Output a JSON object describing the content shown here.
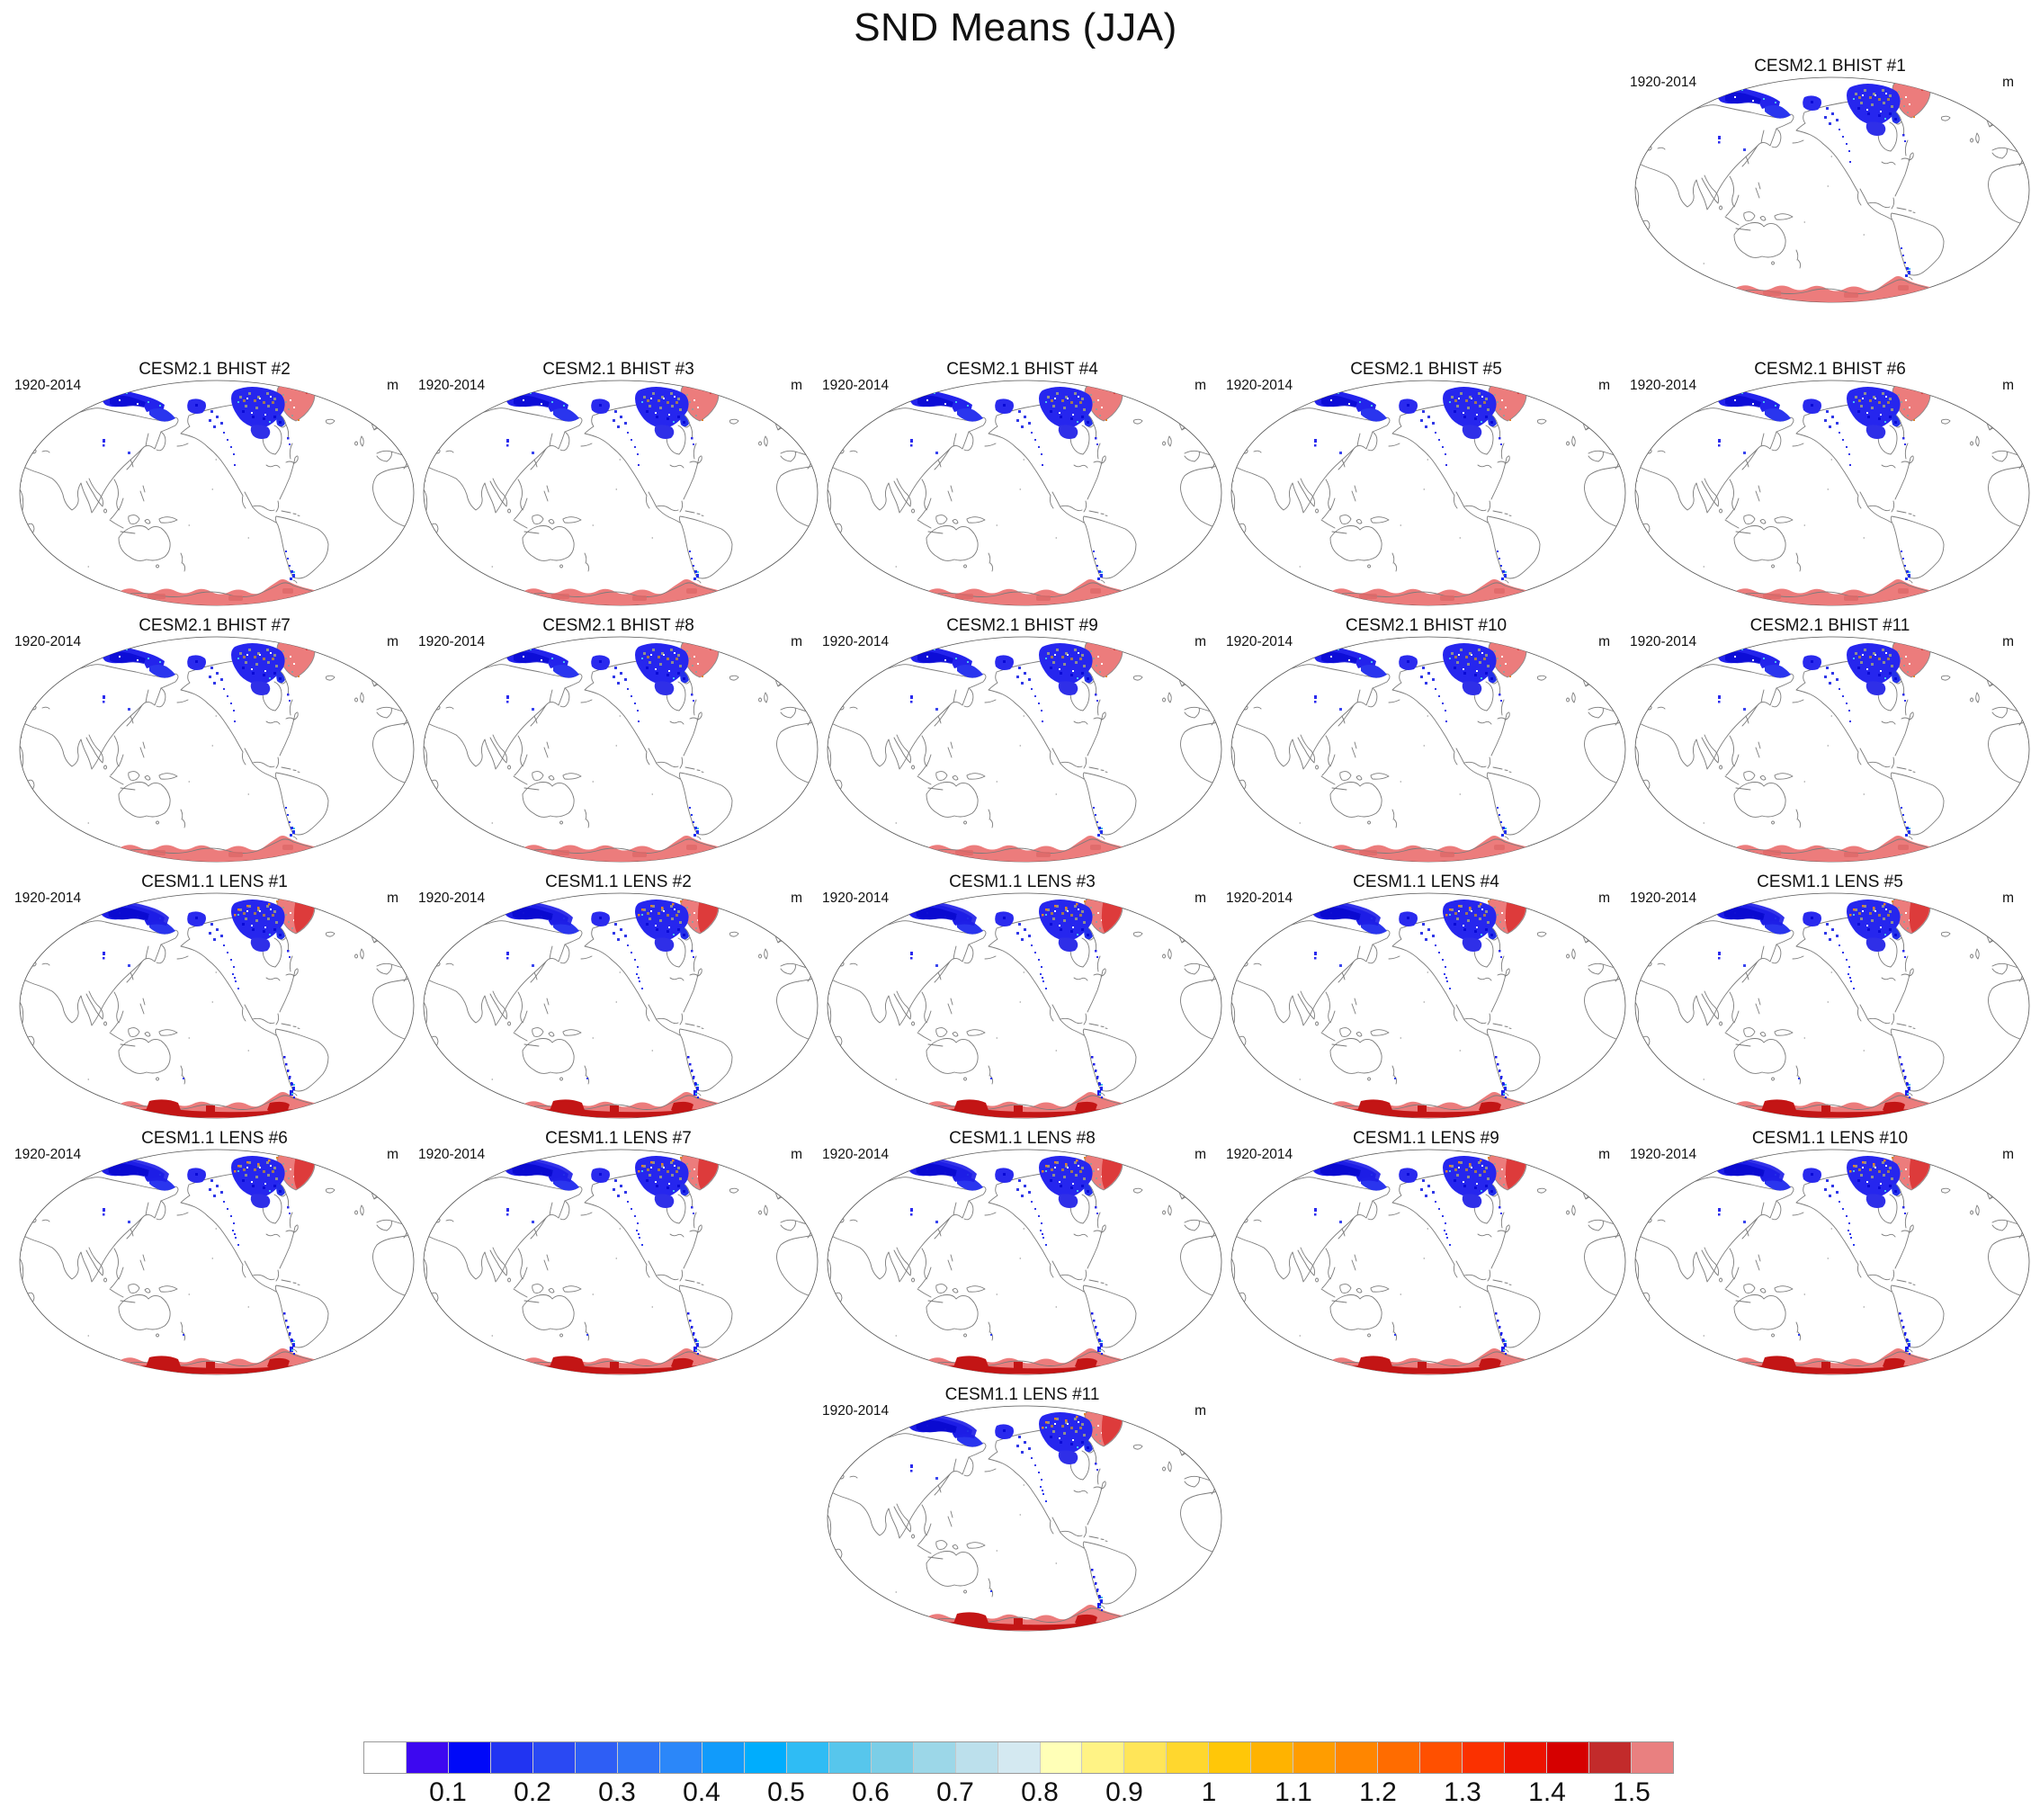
{
  "figure_title": "SND Means (JJA)",
  "panel_defaults": {
    "period": "1920-2014",
    "unit": "m"
  },
  "panels": [
    {
      "title": "CESM2.1 BHIST #1",
      "row": 1,
      "col": 5,
      "variant": "bhist"
    },
    {
      "title": "CESM2.1 BHIST #2",
      "row": 2,
      "col": 1,
      "variant": "bhist"
    },
    {
      "title": "CESM2.1 BHIST #3",
      "row": 2,
      "col": 2,
      "variant": "bhist"
    },
    {
      "title": "CESM2.1 BHIST #4",
      "row": 2,
      "col": 3,
      "variant": "bhist"
    },
    {
      "title": "CESM2.1 BHIST #5",
      "row": 2,
      "col": 4,
      "variant": "bhist"
    },
    {
      "title": "CESM2.1 BHIST #6",
      "row": 2,
      "col": 5,
      "variant": "bhist"
    },
    {
      "title": "CESM2.1 BHIST #7",
      "row": 3,
      "col": 1,
      "variant": "bhist"
    },
    {
      "title": "CESM2.1 BHIST #8",
      "row": 3,
      "col": 2,
      "variant": "bhist"
    },
    {
      "title": "CESM2.1 BHIST #9",
      "row": 3,
      "col": 3,
      "variant": "bhist"
    },
    {
      "title": "CESM2.1 BHIST #10",
      "row": 3,
      "col": 4,
      "variant": "bhist"
    },
    {
      "title": "CESM2.1 BHIST #11",
      "row": 3,
      "col": 5,
      "variant": "bhist"
    },
    {
      "title": "CESM1.1 LENS #1",
      "row": 4,
      "col": 1,
      "variant": "lens"
    },
    {
      "title": "CESM1.1 LENS #2",
      "row": 4,
      "col": 2,
      "variant": "lens"
    },
    {
      "title": "CESM1.1 LENS #3",
      "row": 4,
      "col": 3,
      "variant": "lens"
    },
    {
      "title": "CESM1.1 LENS #4",
      "row": 4,
      "col": 4,
      "variant": "lens"
    },
    {
      "title": "CESM1.1 LENS #5",
      "row": 4,
      "col": 5,
      "variant": "lens"
    },
    {
      "title": "CESM1.1 LENS #6",
      "row": 5,
      "col": 1,
      "variant": "lens"
    },
    {
      "title": "CESM1.1 LENS #7",
      "row": 5,
      "col": 2,
      "variant": "lens"
    },
    {
      "title": "CESM1.1 LENS #8",
      "row": 5,
      "col": 3,
      "variant": "lens"
    },
    {
      "title": "CESM1.1 LENS #9",
      "row": 5,
      "col": 4,
      "variant": "lens"
    },
    {
      "title": "CESM1.1 LENS #10",
      "row": 5,
      "col": 5,
      "variant": "lens"
    },
    {
      "title": "CESM1.1 LENS #11",
      "row": 6,
      "col": 3,
      "variant": "lens"
    }
  ],
  "colorbar": {
    "tick_labels": [
      "0.1",
      "0.2",
      "0.3",
      "0.4",
      "0.5",
      "0.6",
      "0.7",
      "0.8",
      "0.9",
      "1",
      "1.1",
      "1.2",
      "1.3",
      "1.4",
      "1.5"
    ],
    "cells": [
      "#ffffff",
      "#3d08f0",
      "#0009f8",
      "#2134f2",
      "#2a49f3",
      "#2e5ef5",
      "#2e73f7",
      "#2b87f9",
      "#119bfb",
      "#00adfd",
      "#2fbcf4",
      "#57c6ec",
      "#7bcee7",
      "#9cd7e8",
      "#bce0ec",
      "#d4e9f1",
      "#ffffb7",
      "#fff385",
      "#ffe558",
      "#ffd72e",
      "#ffc708",
      "#ffb300",
      "#ff9d00",
      "#ff8600",
      "#ff6c00",
      "#ff5000",
      "#fb3100",
      "#ec1300",
      "#d60000",
      "#c22b2b",
      "#e98080"
    ]
  },
  "map_colors": {
    "snow_blue": "#2323ec",
    "deep_blue": "#0909d4",
    "cyan_speck": "#49c0ea",
    "ice_salmon": "#ec7c7c",
    "deep_red": "#c31515",
    "greenland_red": "#dd3b3b",
    "orange_speck": "#e0812c",
    "coastline": "#7b7b7b"
  }
}
